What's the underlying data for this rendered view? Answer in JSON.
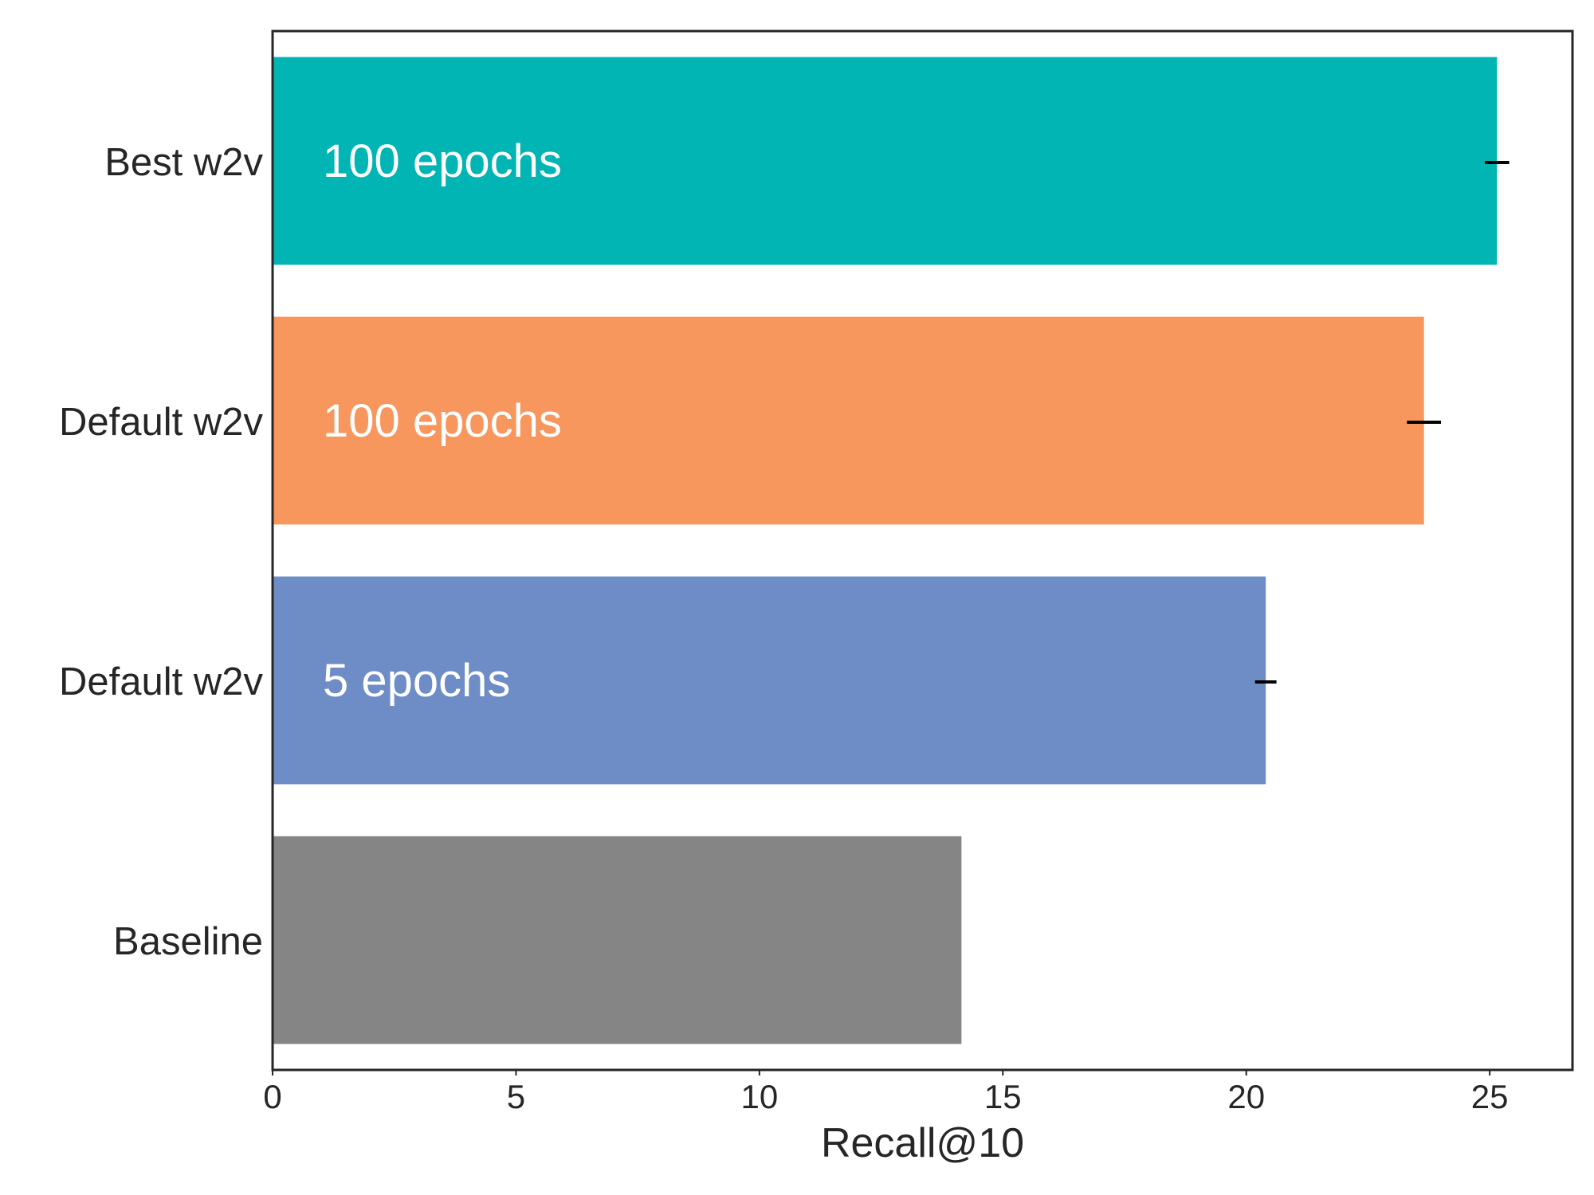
{
  "chart_data": {
    "type": "bar",
    "orientation": "horizontal",
    "title": "",
    "xlabel": "Recall@10",
    "ylabel": "",
    "xlim": [
      0,
      26.7
    ],
    "xticks": [
      0,
      5,
      10,
      15,
      20,
      25
    ],
    "grid": false,
    "legend": "none",
    "categories": [
      "Best w2v",
      "Default w2v",
      "Default w2v",
      "Baseline"
    ],
    "values": [
      25.15,
      23.65,
      20.4,
      14.15
    ],
    "errors": [
      0.25,
      0.35,
      0.22,
      null
    ],
    "bar_labels": [
      "100 epochs",
      "100 epochs",
      "5 epochs",
      ""
    ],
    "colors": [
      "#00b5b3",
      "#f7965d",
      "#6e8cc6",
      "#858585"
    ],
    "error_color": "#000000",
    "axis_color": "#262626"
  }
}
